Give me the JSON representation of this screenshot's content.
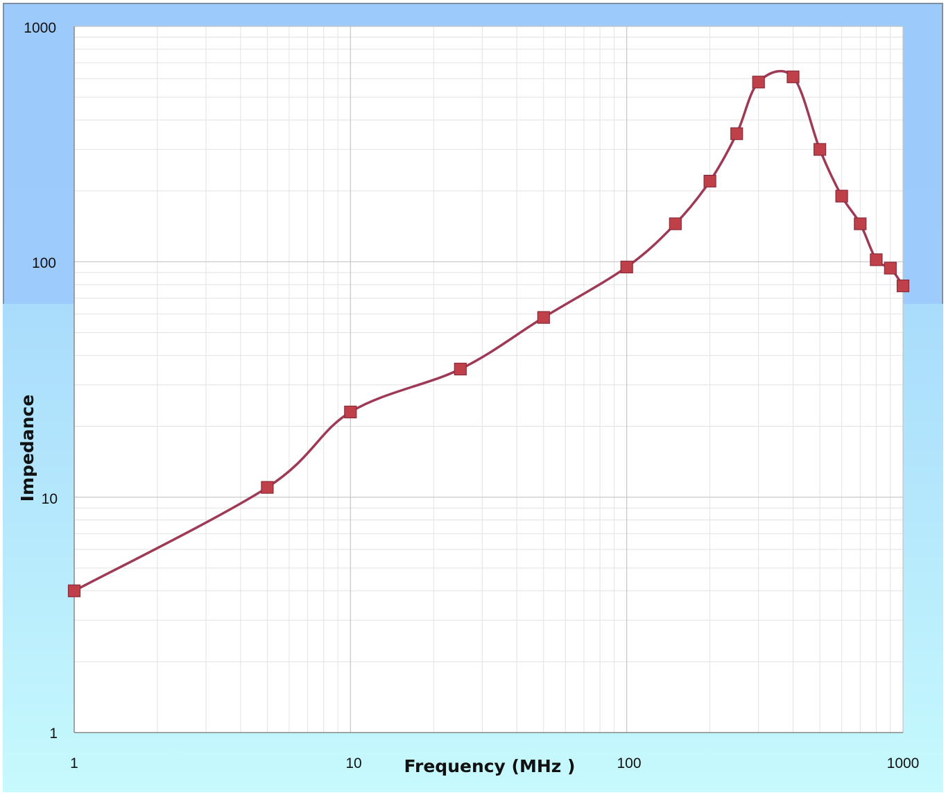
{
  "chart_data": {
    "type": "line",
    "title": "",
    "xlabel": "Frequency (MHz )",
    "ylabel": "Impedance",
    "xscale": "log",
    "yscale": "log",
    "xlim": [
      1,
      1000
    ],
    "ylim": [
      1,
      1000
    ],
    "x_ticks": [
      "1",
      "10",
      "100",
      "1000"
    ],
    "y_ticks": [
      "1",
      "10",
      "100",
      "1000"
    ],
    "grid": true,
    "legend": "none",
    "marker": "square",
    "line_color": "#9e3a55",
    "marker_color": "#c0404a",
    "series": [
      {
        "x": [
          1,
          5,
          10,
          25,
          50,
          100,
          150,
          200,
          250,
          300,
          400,
          500,
          600,
          700,
          800,
          900,
          1000
        ],
        "values": [
          4,
          11,
          23,
          35,
          58,
          95,
          145,
          220,
          350,
          580,
          610,
          300,
          190,
          145,
          102,
          94,
          79
        ]
      }
    ]
  }
}
